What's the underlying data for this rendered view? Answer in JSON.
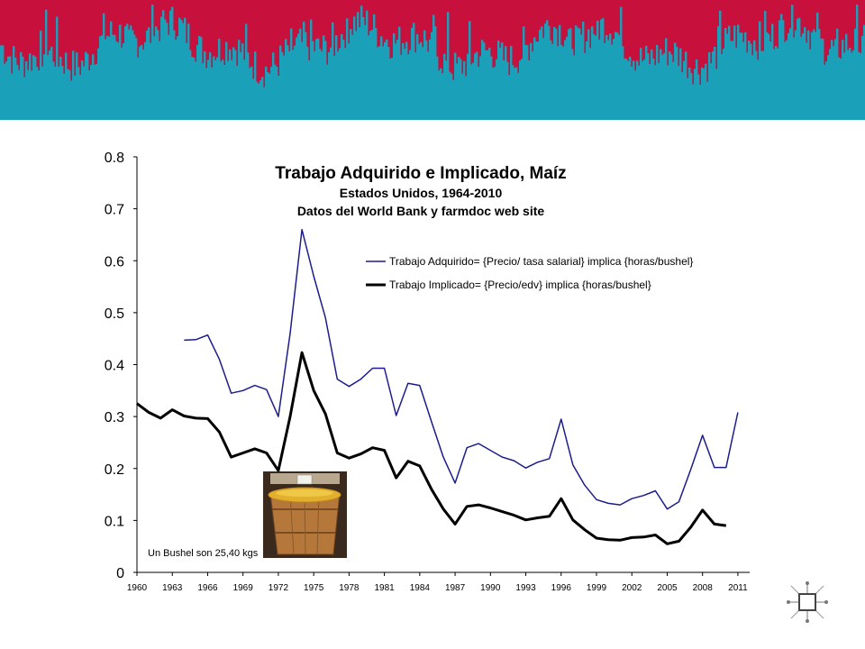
{
  "colors": {
    "banner_top": "#c8103c",
    "banner_bottom": "#1aa0b8",
    "series_adquirido": "#1c1c8c",
    "series_implicado": "#000000"
  },
  "chart_data": {
    "type": "line",
    "title": "Trabajo Adquirido e Implicado, Maíz",
    "subtitle": "Estados Unidos, 1964-2010",
    "subtitle2": "Datos del World Bank y farmdoc web site",
    "xlabel": "",
    "ylabel": "",
    "xlim": [
      1960,
      2012
    ],
    "ylim": [
      0,
      0.8
    ],
    "x_ticks": [
      "1960",
      "1963",
      "1966",
      "1969",
      "1972",
      "1975",
      "1978",
      "1981",
      "1984",
      "1987",
      "1990",
      "1993",
      "1996",
      "1999",
      "2002",
      "2005",
      "2008",
      "2011"
    ],
    "y_ticks": [
      "0",
      "0.1",
      "0.2",
      "0.3",
      "0.4",
      "0.5",
      "0.6",
      "0.7",
      "0.8"
    ],
    "grid": false,
    "legend_position": "top-right",
    "series": [
      {
        "name": "Trabajo Adquirido= {Precio/ tasa salarial} implica {horas/bushel}",
        "color": "#1c1c8c",
        "x": [
          1964,
          1965,
          1966,
          1967,
          1968,
          1969,
          1970,
          1971,
          1972,
          1973,
          1974,
          1975,
          1976,
          1977,
          1978,
          1979,
          1980,
          1981,
          1982,
          1983,
          1984,
          1985,
          1986,
          1987,
          1988,
          1989,
          1990,
          1991,
          1992,
          1993,
          1994,
          1995,
          1996,
          1997,
          1998,
          1999,
          2000,
          2001,
          2002,
          2003,
          2004,
          2005,
          2006,
          2007,
          2008,
          2009,
          2010,
          2011
        ],
        "y": [
          0.447,
          0.448,
          0.457,
          0.41,
          0.345,
          0.35,
          0.36,
          0.352,
          0.3,
          0.46,
          0.66,
          0.57,
          0.49,
          0.372,
          0.358,
          0.372,
          0.393,
          0.393,
          0.302,
          0.364,
          0.36,
          0.29,
          0.222,
          0.172,
          0.24,
          0.248,
          0.235,
          0.222,
          0.215,
          0.201,
          0.212,
          0.219,
          0.295,
          0.207,
          0.168,
          0.14,
          0.133,
          0.13,
          0.142,
          0.148,
          0.157,
          0.122,
          0.136,
          0.198,
          0.264,
          0.202,
          0.202,
          0.308
        ]
      },
      {
        "name": "Trabajo Implicado= {Precio/edv} implica {horas/bushel}",
        "color": "#000000",
        "x": [
          1960,
          1961,
          1962,
          1963,
          1964,
          1965,
          1966,
          1967,
          1968,
          1969,
          1970,
          1971,
          1972,
          1973,
          1974,
          1975,
          1976,
          1977,
          1978,
          1979,
          1980,
          1981,
          1982,
          1983,
          1984,
          1985,
          1986,
          1987,
          1988,
          1989,
          1990,
          1991,
          1992,
          1993,
          1994,
          1995,
          1996,
          1997,
          1998,
          1999,
          2000,
          2001,
          2002,
          2003,
          2004,
          2005,
          2006,
          2007,
          2008,
          2009,
          2010
        ],
        "y": [
          0.325,
          0.308,
          0.297,
          0.313,
          0.301,
          0.297,
          0.296,
          0.27,
          0.222,
          0.23,
          0.238,
          0.23,
          0.196,
          0.3,
          0.423,
          0.35,
          0.305,
          0.23,
          0.22,
          0.228,
          0.24,
          0.235,
          0.182,
          0.214,
          0.205,
          0.16,
          0.122,
          0.093,
          0.127,
          0.13,
          0.124,
          0.117,
          0.11,
          0.101,
          0.105,
          0.108,
          0.142,
          0.101,
          0.082,
          0.066,
          0.063,
          0.062,
          0.067,
          0.068,
          0.072,
          0.055,
          0.06,
          0.087,
          0.12,
          0.093,
          0.09
        ]
      }
    ],
    "inset_caption": "Un Bushel son 25,40 kgs"
  }
}
